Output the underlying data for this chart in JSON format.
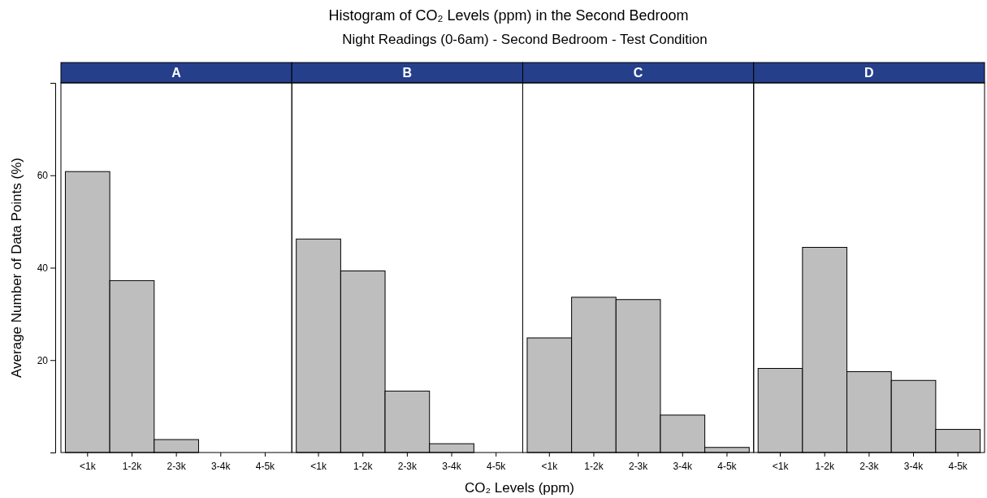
{
  "chart_data": [
    {
      "type": "bar",
      "title": "A",
      "annotations": [
        "Histogram of CO₂ Levels (ppm) in the Second Bedroom",
        "Night Readings (0-6am) - Second Bedroom - Test Condition",
        "CO₂ Levels (ppm)"
      ],
      "ylabel": "Average Number of Data Points (%)",
      "categories": [
        "<1k",
        "1-2k",
        "2-3k",
        "3-4k",
        "4-5k"
      ],
      "values": [
        60.8,
        37.2,
        2.8,
        0,
        0
      ],
      "color": "#bebebe",
      "ylim": [
        0,
        80
      ],
      "yticks": [
        {
          "value": 0,
          "label": null
        },
        20,
        40,
        60,
        {
          "value": 80,
          "label": null
        }
      ]
    },
    {
      "type": "bar",
      "title": "B",
      "categories": [
        "<1k",
        "1-2k",
        "2-3k",
        "3-4k",
        "4-5k"
      ],
      "values": [
        46.2,
        39.3,
        13.3,
        1.9,
        0
      ],
      "color": "#bebebe",
      "ylim": [
        0,
        80
      ],
      "tick_labels": "x"
    },
    {
      "type": "bar",
      "title": "C",
      "categories": [
        "<1k",
        "1-2k",
        "2-3k",
        "3-4k",
        "4-5k"
      ],
      "values": [
        24.8,
        33.6,
        33.1,
        8.1,
        1.1
      ],
      "color": "#bebebe",
      "ylim": [
        0,
        80
      ],
      "tick_labels": "x"
    },
    {
      "type": "bar",
      "title": "D",
      "categories": [
        "<1k",
        "1-2k",
        "2-3k",
        "3-4k",
        "4-5k"
      ],
      "values": [
        18.2,
        44.4,
        17.5,
        15.6,
        5.0
      ],
      "color": "#bebebe",
      "ylim": [
        0,
        80
      ],
      "tick_labels": "x"
    }
  ]
}
